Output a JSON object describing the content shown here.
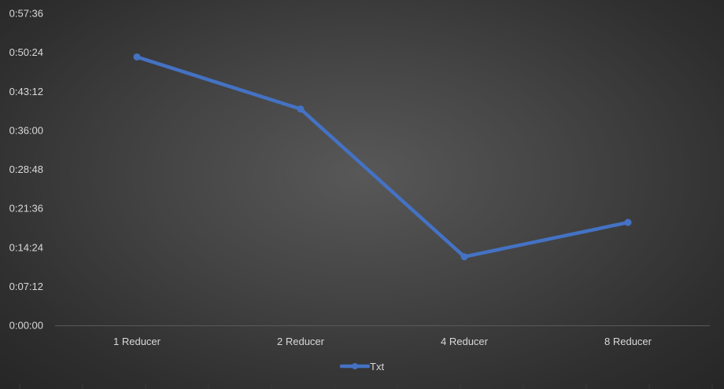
{
  "chart_data": {
    "type": "line",
    "categories": [
      "1 Reducer",
      "2 Reducer",
      "4 Reducer",
      "8 Reducer"
    ],
    "series": [
      {
        "name": "Txt",
        "values": [
          2973,
          2396,
          760,
          1140
        ]
      }
    ],
    "values_display": [
      "0:49:33",
      "0:39:56",
      "0:12:40",
      "0:19:00"
    ],
    "y_ticks": [
      "0:00:00",
      "0:07:12",
      "0:14:24",
      "0:21:36",
      "0:28:48",
      "0:36:00",
      "0:43:12",
      "0:50:24",
      "0:57:36"
    ],
    "ylim_seconds": [
      0,
      3456
    ],
    "y_unit": "h:mm:ss",
    "title": "",
    "xlabel": "",
    "ylabel": "",
    "legend": {
      "position": "bottom"
    },
    "grid": false,
    "colors": {
      "series": "#4472c4",
      "text": "#d9d9d9",
      "axis": "#595959",
      "background": "#404040"
    }
  }
}
